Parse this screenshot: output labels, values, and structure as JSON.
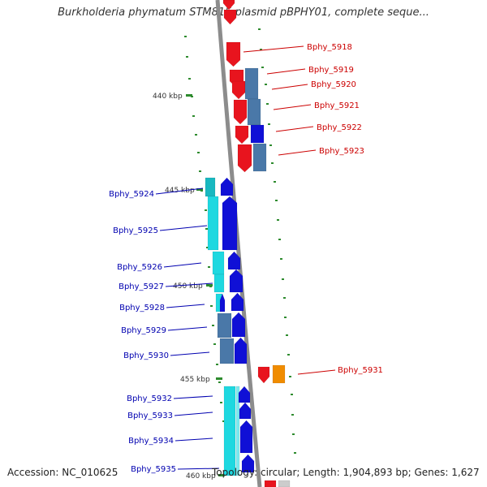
{
  "title": "Burkholderia phymatum STM815 plasmid pBPHY01, complete seque...",
  "accession_text": "Accession: NC_010625",
  "topology_text": "Topology: circular; Length: 1,904,893 bp; Genes: 1,627",
  "colors": {
    "backbone": "#8c8c8c",
    "tick": "#2e8b2e",
    "red": "#e8141e",
    "darkblue": "#1010d6",
    "steelblue": "#4a78a8",
    "cyan": "#1ed8e0",
    "orange": "#f08c00",
    "label_red": "#cc0000",
    "label_blue": "#0000b0"
  },
  "ticks": [
    "440 kbp",
    "445 kbp",
    "450 kbp",
    "455 kbp",
    "460 kbp"
  ],
  "genes": [
    {
      "name": "Bphy_5918",
      "strand": "+"
    },
    {
      "name": "Bphy_5919",
      "strand": "+"
    },
    {
      "name": "Bphy_5920",
      "strand": "+"
    },
    {
      "name": "Bphy_5921",
      "strand": "+"
    },
    {
      "name": "Bphy_5922",
      "strand": "+"
    },
    {
      "name": "Bphy_5923",
      "strand": "+"
    },
    {
      "name": "Bphy_5924",
      "strand": "-"
    },
    {
      "name": "Bphy_5925",
      "strand": "-"
    },
    {
      "name": "Bphy_5926",
      "strand": "-"
    },
    {
      "name": "Bphy_5927",
      "strand": "-"
    },
    {
      "name": "Bphy_5928",
      "strand": "-"
    },
    {
      "name": "Bphy_5929",
      "strand": "-"
    },
    {
      "name": "Bphy_5930",
      "strand": "-"
    },
    {
      "name": "Bphy_5931",
      "strand": "+"
    },
    {
      "name": "Bphy_5932",
      "strand": "-"
    },
    {
      "name": "Bphy_5933",
      "strand": "-"
    },
    {
      "name": "Bphy_5934",
      "strand": "-"
    },
    {
      "name": "Bphy_5935",
      "strand": "-"
    }
  ]
}
